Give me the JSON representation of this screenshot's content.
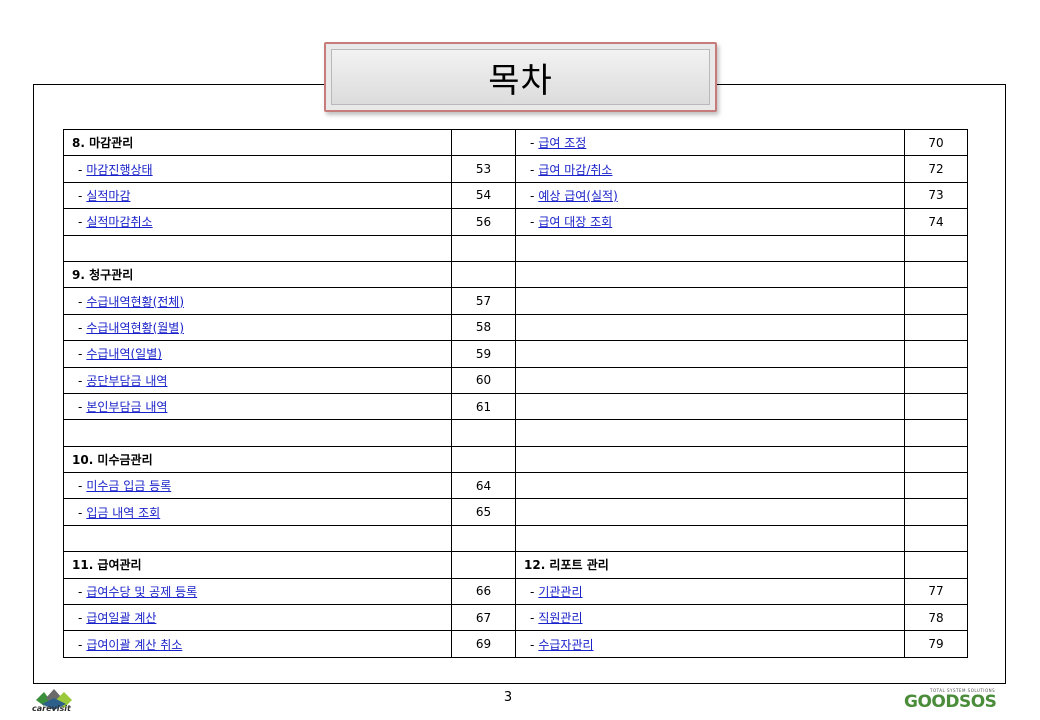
{
  "title": "목차",
  "page_number": "3",
  "branding": {
    "left_logo_text": "carevisit",
    "right_logo_tagline": "TOTAL SYSTEM SOLUTIONS",
    "right_logo_text": "GOODSOS",
    "accent_green": "#4a8c3a",
    "link_color": "#1a22c9",
    "title_border_color": "#c77c7c"
  },
  "rows": [
    {
      "left": {
        "type": "header",
        "text": "8. 마감관리",
        "page": ""
      },
      "right": {
        "type": "item",
        "text": "급여 조정",
        "page": "70"
      }
    },
    {
      "left": {
        "type": "item",
        "text": "마감진행상태",
        "page": "53"
      },
      "right": {
        "type": "item",
        "text": "급여 마감/취소",
        "page": "72"
      }
    },
    {
      "left": {
        "type": "item",
        "text": "실적마감",
        "page": "54"
      },
      "right": {
        "type": "item",
        "text": "예상 급여(실적)",
        "page": "73"
      }
    },
    {
      "left": {
        "type": "item",
        "text": "실적마감취소",
        "page": "56"
      },
      "right": {
        "type": "item",
        "text": "급여 대장 조회",
        "page": "74"
      }
    },
    {
      "left": {
        "type": "empty",
        "text": "",
        "page": ""
      },
      "right": {
        "type": "empty",
        "text": "",
        "page": ""
      }
    },
    {
      "left": {
        "type": "header",
        "text": "9. 청구관리",
        "page": ""
      },
      "right": {
        "type": "empty",
        "text": "",
        "page": ""
      }
    },
    {
      "left": {
        "type": "item",
        "text": "수급내역현황(전체)",
        "page": "57"
      },
      "right": {
        "type": "empty",
        "text": "",
        "page": ""
      }
    },
    {
      "left": {
        "type": "item",
        "text": "수급내역현황(월별)",
        "page": "58"
      },
      "right": {
        "type": "empty",
        "text": "",
        "page": ""
      }
    },
    {
      "left": {
        "type": "item",
        "text": "수급내역(일별)",
        "page": "59"
      },
      "right": {
        "type": "empty",
        "text": "",
        "page": ""
      }
    },
    {
      "left": {
        "type": "item",
        "text": "공단부담금 내역",
        "page": "60"
      },
      "right": {
        "type": "empty",
        "text": "",
        "page": ""
      }
    },
    {
      "left": {
        "type": "item",
        "text": "본인부담금 내역",
        "page": "61"
      },
      "right": {
        "type": "empty",
        "text": "",
        "page": ""
      }
    },
    {
      "left": {
        "type": "empty",
        "text": "",
        "page": ""
      },
      "right": {
        "type": "empty",
        "text": "",
        "page": ""
      }
    },
    {
      "left": {
        "type": "header",
        "text": "10. 미수금관리",
        "page": ""
      },
      "right": {
        "type": "empty",
        "text": "",
        "page": ""
      }
    },
    {
      "left": {
        "type": "item",
        "text": "미수금 입금 등록",
        "page": "64"
      },
      "right": {
        "type": "empty",
        "text": "",
        "page": ""
      }
    },
    {
      "left": {
        "type": "item",
        "text": "입금 내역 조회",
        "page": "65"
      },
      "right": {
        "type": "empty",
        "text": "",
        "page": ""
      }
    },
    {
      "left": {
        "type": "empty",
        "text": "",
        "page": ""
      },
      "right": {
        "type": "empty",
        "text": "",
        "page": ""
      }
    },
    {
      "left": {
        "type": "header",
        "text": "11. 급여관리",
        "page": ""
      },
      "right": {
        "type": "header",
        "text": "12. 리포트 관리",
        "page": ""
      }
    },
    {
      "left": {
        "type": "item",
        "text": "급여수당 및 공제 등록",
        "page": "66"
      },
      "right": {
        "type": "item",
        "text": "기관관리",
        "page": "77"
      }
    },
    {
      "left": {
        "type": "item",
        "text": "급여일괄 계산",
        "page": "67"
      },
      "right": {
        "type": "item",
        "text": "직원관리",
        "page": "78"
      }
    },
    {
      "left": {
        "type": "item",
        "text": "급여이괄 계산 취소",
        "page": "69"
      },
      "right": {
        "type": "item",
        "text": "수급자관리",
        "page": "79"
      }
    }
  ]
}
